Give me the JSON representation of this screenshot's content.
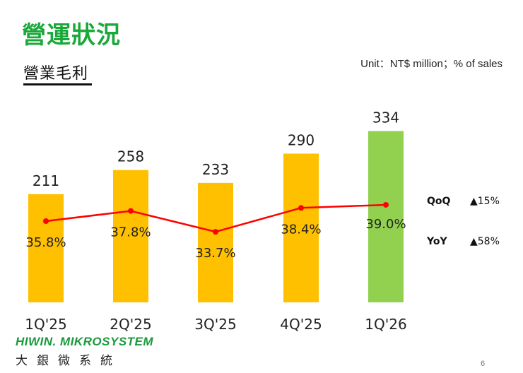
{
  "header": {
    "title": "營運狀況",
    "subtitle": "營業毛利",
    "unit": "Unit：NT$ million；% of sales"
  },
  "chart_data": {
    "type": "bar",
    "categories": [
      "1Q'25",
      "2Q'25",
      "3Q'25",
      "4Q'25",
      "1Q'26"
    ],
    "series": [
      {
        "type": "bar",
        "values": [
          211,
          258,
          233,
          290,
          334
        ],
        "colors": [
          "#ffc000",
          "#ffc000",
          "#ffc000",
          "#ffc000",
          "#92d050"
        ]
      },
      {
        "type": "line",
        "values": [
          35.8,
          37.8,
          33.7,
          38.4,
          39.0
        ],
        "labels": [
          "35.8%",
          "37.8%",
          "33.7%",
          "38.4%",
          "39.0%"
        ],
        "color": "#ff0000"
      }
    ],
    "legend": "none",
    "grid": false
  },
  "growth": {
    "qoq_label": "QoQ",
    "qoq_value": "▲15%",
    "yoy_label": "YoY",
    "yoy_value": "▲58%"
  },
  "footer": {
    "logo": "HIWIN. MIKROSYSTEM",
    "company": "大銀微系統",
    "page_number": "6"
  }
}
